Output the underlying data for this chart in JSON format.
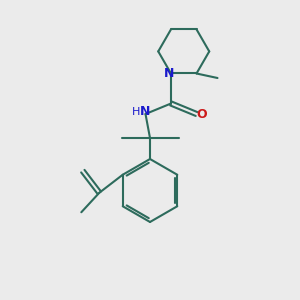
{
  "bg_color": "#ebebeb",
  "bond_color": "#2d6b5c",
  "N_color": "#1a1acc",
  "O_color": "#cc1a1a",
  "line_width": 1.5,
  "figsize": [
    3.0,
    3.0
  ],
  "dpi": 100,
  "xlim": [
    0,
    10
  ],
  "ylim": [
    0,
    10
  ]
}
